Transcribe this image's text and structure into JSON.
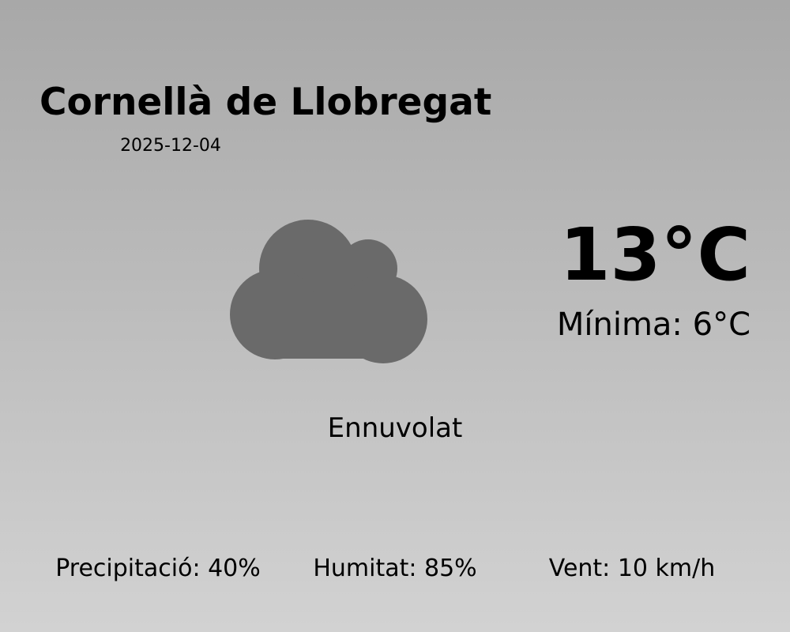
{
  "location": "Cornellà de Llobregat",
  "date": "2025-12-04",
  "temperature": "13°C",
  "minimum": "Mínima: 6°C",
  "condition": "Ennuvolat",
  "condition_icon": "cloud-icon",
  "colors": {
    "cloud": "#6a6a6a",
    "background_top": "#a8a8a8",
    "background_bottom": "#d2d2d2"
  },
  "stats": {
    "precipitation": "Precipitació: 40%",
    "humidity": "Humitat: 85%",
    "wind": "Vent: 10 km/h"
  }
}
